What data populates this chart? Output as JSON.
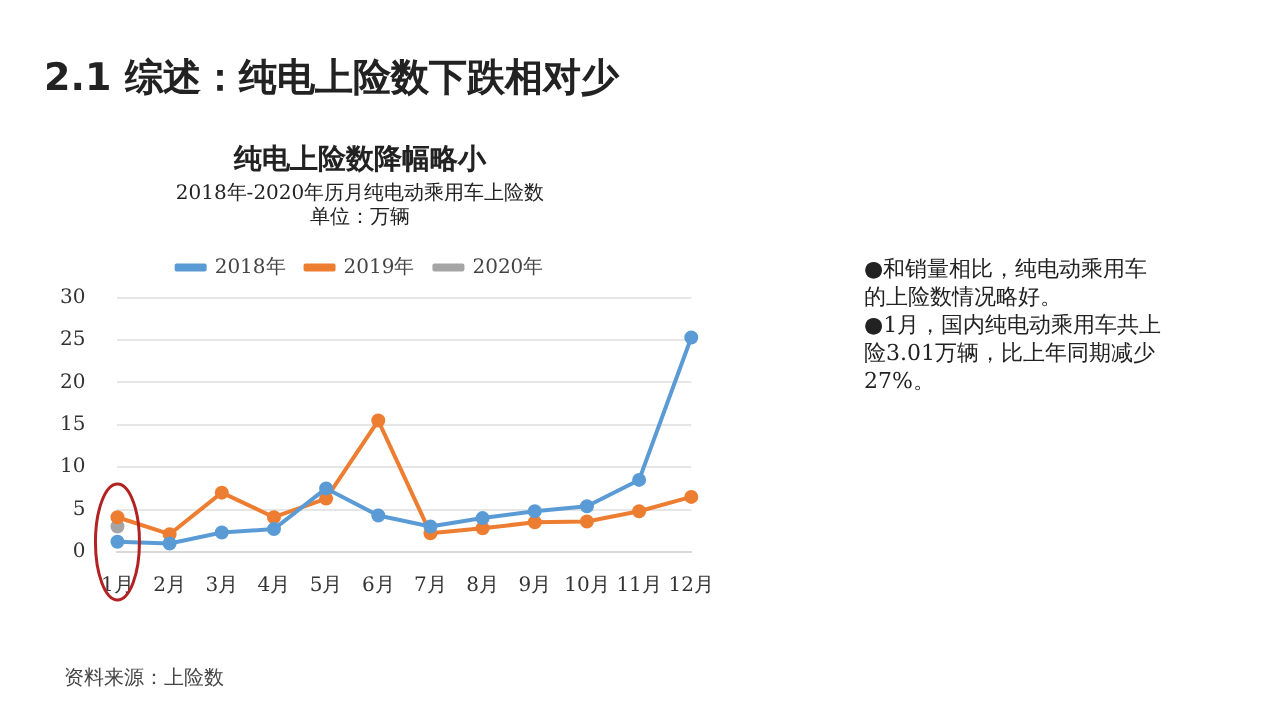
{
  "chart_data": {
    "type": "line",
    "title": "纯电上险数降幅略小",
    "subtitle": "2018年-2020年历月纯电动乘用车上险数",
    "categories": [
      "1月",
      "2月",
      "3月",
      "4月",
      "5月",
      "6月",
      "7月",
      "8月",
      "9月",
      "10月",
      "11月",
      "12月"
    ],
    "series": [
      {
        "name": "2018年",
        "color": "#5b9bd5",
        "values": [
          1.2,
          1.0,
          2.3,
          2.7,
          7.5,
          4.3,
          3.0,
          4.0,
          4.8,
          5.4,
          8.5,
          25.3
        ]
      },
      {
        "name": "2019年",
        "color": "#ed7d31",
        "values": [
          4.1,
          2.1,
          7.0,
          4.1,
          6.3,
          15.5,
          2.2,
          2.8,
          3.5,
          3.6,
          4.8,
          6.5
        ]
      },
      {
        "name": "2020年",
        "color": "#a5a5a5",
        "values": [
          3.0,
          null,
          null,
          null,
          null,
          null,
          null,
          null,
          null,
          null,
          null,
          null
        ]
      }
    ],
    "ylim": [
      0,
      30
    ],
    "yticks": [
      0,
      5,
      10,
      15,
      20,
      25,
      30
    ],
    "grid": "y",
    "legend": "top",
    "marker": "circle",
    "line_style": "solid",
    "annotations": [
      "2.1 综述：纯电上险数下跌相对少",
      "●和销量相比，纯电动乘用车的上险数情况略好。\n●1月，国内纯电动乘用车共上险3.01万辆，比上年同期减少27%。",
      "资料来源：上险数",
      "单位：万辆"
    ]
  }
}
